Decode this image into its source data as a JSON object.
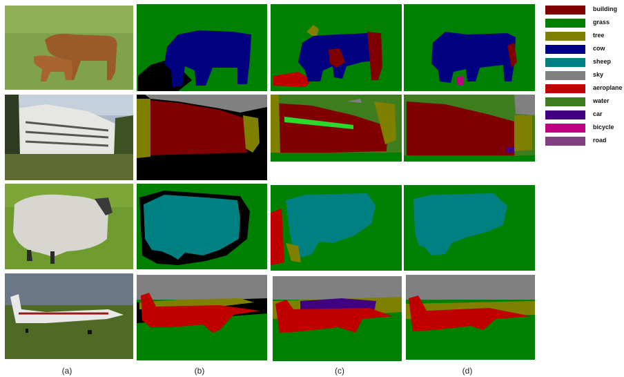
{
  "columns": [
    {
      "label": "(a)",
      "content": "photo"
    },
    {
      "label": "(b)",
      "content": "ground-truth-segmentation"
    },
    {
      "label": "(c)",
      "content": "segmentation-result"
    },
    {
      "label": "(d)",
      "content": "segmentation-result"
    }
  ],
  "rows": [
    {
      "subject": "cow"
    },
    {
      "subject": "building"
    },
    {
      "subject": "sheep"
    },
    {
      "subject": "aeroplane"
    }
  ],
  "legend": [
    {
      "label": "building",
      "color": "#800000"
    },
    {
      "label": "grass",
      "color": "#008000"
    },
    {
      "label": "tree",
      "color": "#808000"
    },
    {
      "label": "cow",
      "color": "#000080"
    },
    {
      "label": "sheep",
      "color": "#008080"
    },
    {
      "label": "sky",
      "color": "#808080"
    },
    {
      "label": "aeroplane",
      "color": "#c00000"
    },
    {
      "label": "water",
      "color": "#3e7d1e"
    },
    {
      "label": "car",
      "color": "#400080"
    },
    {
      "label": "bicycle",
      "color": "#c00080"
    },
    {
      "label": "road",
      "color": "#804080"
    }
  ]
}
